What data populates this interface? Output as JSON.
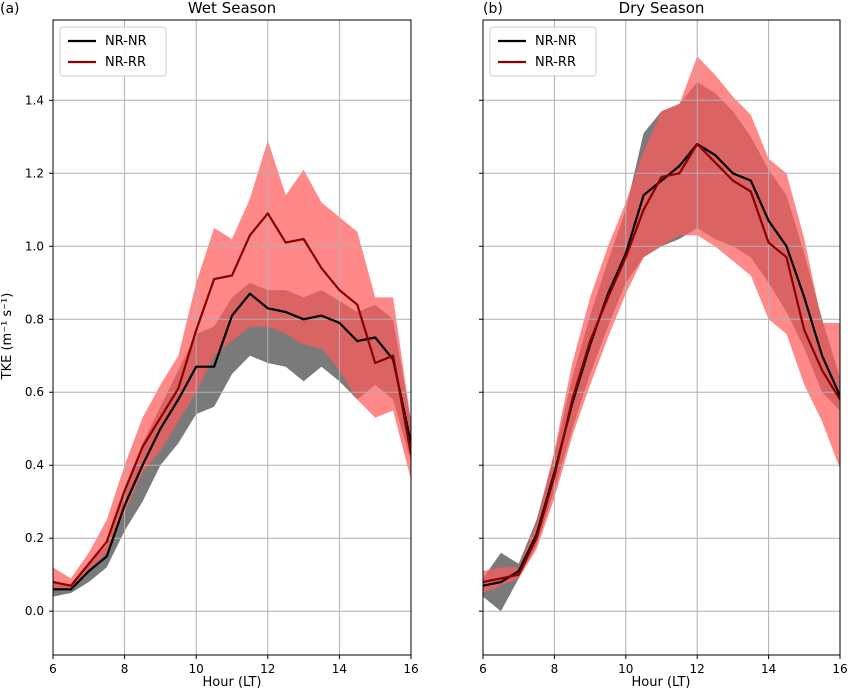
{
  "figure": {
    "ylabel": "TKE (m⁻¹ s⁻¹)",
    "xlabel": "Hour (LT)"
  },
  "chart_data": [
    {
      "type": "line",
      "panel_label": "(a)",
      "title": "Wet Season",
      "xlabel": "Hour (LT)",
      "ylabel": "TKE (m⁻¹ s⁻¹)",
      "xlim": [
        6,
        16
      ],
      "ylim": [
        -0.12,
        1.62
      ],
      "xticks": [
        6,
        8,
        10,
        12,
        14,
        16
      ],
      "yticks": [
        0.0,
        0.2,
        0.4,
        0.6,
        0.8,
        1.0,
        1.2,
        1.4
      ],
      "grid": true,
      "legend_position": "top-left",
      "x": [
        6,
        6.5,
        7,
        7.5,
        8,
        8.5,
        9,
        9.5,
        10,
        10.5,
        11,
        11.5,
        12,
        12.5,
        13,
        13.5,
        14,
        14.5,
        15,
        15.5,
        16
      ],
      "series": [
        {
          "name": "NR-NR",
          "color": "#000000",
          "band_color": "#7a7a7a",
          "values": [
            0.06,
            0.06,
            0.11,
            0.15,
            0.29,
            0.4,
            0.5,
            0.58,
            0.67,
            0.67,
            0.81,
            0.87,
            0.83,
            0.82,
            0.8,
            0.81,
            0.79,
            0.74,
            0.75,
            0.69,
            0.46
          ],
          "lower": [
            0.04,
            0.05,
            0.08,
            0.12,
            0.22,
            0.3,
            0.4,
            0.46,
            0.54,
            0.56,
            0.65,
            0.7,
            0.68,
            0.67,
            0.63,
            0.67,
            0.63,
            0.58,
            0.62,
            0.58,
            0.41
          ],
          "upper": [
            0.08,
            0.07,
            0.13,
            0.18,
            0.33,
            0.46,
            0.56,
            0.66,
            0.76,
            0.78,
            0.86,
            0.9,
            0.88,
            0.88,
            0.86,
            0.88,
            0.85,
            0.82,
            0.84,
            0.8,
            0.52
          ]
        },
        {
          "name": "NR-RR",
          "color": "#8b0000",
          "band_color": "#ff5a5a",
          "values": [
            0.08,
            0.07,
            0.13,
            0.19,
            0.33,
            0.45,
            0.53,
            0.61,
            0.77,
            0.91,
            0.92,
            1.03,
            1.09,
            1.01,
            1.02,
            0.94,
            0.88,
            0.84,
            0.68,
            0.7,
            0.43
          ],
          "lower": [
            0.06,
            0.06,
            0.11,
            0.16,
            0.27,
            0.38,
            0.44,
            0.52,
            0.6,
            0.7,
            0.74,
            0.78,
            0.78,
            0.76,
            0.73,
            0.72,
            0.66,
            0.58,
            0.53,
            0.55,
            0.36
          ],
          "upper": [
            0.12,
            0.09,
            0.16,
            0.25,
            0.4,
            0.53,
            0.62,
            0.7,
            0.9,
            1.05,
            1.02,
            1.13,
            1.29,
            1.14,
            1.21,
            1.12,
            1.08,
            1.04,
            0.86,
            0.86,
            0.52
          ]
        }
      ]
    },
    {
      "type": "line",
      "panel_label": "(b)",
      "title": "Dry Season",
      "xlabel": "Hour (LT)",
      "xlim": [
        6,
        16
      ],
      "ylim": [
        -0.12,
        1.62
      ],
      "xticks": [
        6,
        8,
        10,
        12,
        14,
        16
      ],
      "yticks": [
        0.0,
        0.2,
        0.4,
        0.6,
        0.8,
        1.0,
        1.2,
        1.4
      ],
      "grid": true,
      "legend_position": "top-left",
      "x": [
        6,
        6.5,
        7,
        7.5,
        8,
        8.5,
        9,
        9.5,
        10,
        10.5,
        11,
        11.5,
        12,
        12.5,
        13,
        13.5,
        14,
        14.5,
        15,
        15.5,
        16
      ],
      "series": [
        {
          "name": "NR-NR",
          "color": "#000000",
          "band_color": "#7a7a7a",
          "values": [
            0.07,
            0.08,
            0.11,
            0.21,
            0.38,
            0.57,
            0.73,
            0.87,
            0.98,
            1.14,
            1.18,
            1.22,
            1.28,
            1.25,
            1.2,
            1.18,
            1.07,
            1.0,
            0.86,
            0.7,
            0.59
          ],
          "lower": [
            0.04,
            0.0,
            0.09,
            0.18,
            0.33,
            0.5,
            0.65,
            0.78,
            0.9,
            0.97,
            1.0,
            1.02,
            1.05,
            1.02,
            1.0,
            0.97,
            0.9,
            0.82,
            0.72,
            0.6,
            0.55
          ],
          "upper": [
            0.09,
            0.16,
            0.13,
            0.25,
            0.43,
            0.64,
            0.81,
            0.96,
            1.1,
            1.31,
            1.37,
            1.39,
            1.45,
            1.42,
            1.37,
            1.3,
            1.21,
            1.14,
            0.98,
            0.8,
            0.64
          ]
        },
        {
          "name": "NR-RR",
          "color": "#8b0000",
          "band_color": "#ff5a5a",
          "values": [
            0.08,
            0.09,
            0.1,
            0.2,
            0.37,
            0.58,
            0.74,
            0.86,
            0.97,
            1.1,
            1.19,
            1.2,
            1.28,
            1.23,
            1.18,
            1.15,
            1.01,
            0.97,
            0.77,
            0.66,
            0.58
          ],
          "lower": [
            0.05,
            0.07,
            0.09,
            0.17,
            0.31,
            0.48,
            0.62,
            0.75,
            0.87,
            0.97,
            1.0,
            1.03,
            1.03,
            1.0,
            0.96,
            0.92,
            0.8,
            0.76,
            0.62,
            0.52,
            0.39
          ],
          "upper": [
            0.11,
            0.12,
            0.12,
            0.24,
            0.44,
            0.68,
            0.86,
            1.0,
            1.12,
            1.26,
            1.37,
            1.39,
            1.52,
            1.47,
            1.41,
            1.36,
            1.24,
            1.2,
            1.02,
            0.79,
            0.79
          ]
        }
      ]
    }
  ]
}
